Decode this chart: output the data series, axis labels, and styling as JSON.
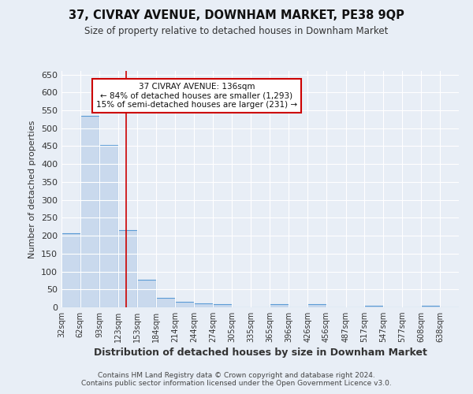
{
  "title": "37, CIVRAY AVENUE, DOWNHAM MARKET, PE38 9QP",
  "subtitle": "Size of property relative to detached houses in Downham Market",
  "xlabel": "Distribution of detached houses by size in Downham Market",
  "ylabel": "Number of detached properties",
  "bar_labels": [
    "32sqm",
    "62sqm",
    "93sqm",
    "123sqm",
    "153sqm",
    "184sqm",
    "214sqm",
    "244sqm",
    "274sqm",
    "305sqm",
    "335sqm",
    "365sqm",
    "396sqm",
    "426sqm",
    "456sqm",
    "487sqm",
    "517sqm",
    "547sqm",
    "577sqm",
    "608sqm",
    "638sqm"
  ],
  "bar_values": [
    207,
    535,
    453,
    215,
    78,
    27,
    16,
    12,
    8,
    0,
    0,
    8,
    0,
    8,
    0,
    0,
    5,
    0,
    0,
    5,
    0
  ],
  "bar_color": "#c9d9ed",
  "bar_edge_color": "#5b9bd5",
  "vline_x": 136,
  "vline_color": "#cc0000",
  "bin_edges": [
    32,
    62,
    93,
    123,
    153,
    184,
    214,
    244,
    274,
    305,
    335,
    365,
    396,
    426,
    456,
    487,
    517,
    547,
    577,
    608,
    638,
    668
  ],
  "annotation_line1": "37 CIVRAY AVENUE: 136sqm",
  "annotation_line2": "← 84% of detached houses are smaller (1,293)",
  "annotation_line3": "15% of semi-detached houses are larger (231) →",
  "annotation_box_color": "#ffffff",
  "annotation_border_color": "#cc0000",
  "ylim": [
    0,
    660
  ],
  "yticks": [
    0,
    50,
    100,
    150,
    200,
    250,
    300,
    350,
    400,
    450,
    500,
    550,
    600,
    650
  ],
  "bg_color": "#e8eef6",
  "grid_color": "#ffffff",
  "footnote1": "Contains HM Land Registry data © Crown copyright and database right 2024.",
  "footnote2": "Contains public sector information licensed under the Open Government Licence v3.0."
}
